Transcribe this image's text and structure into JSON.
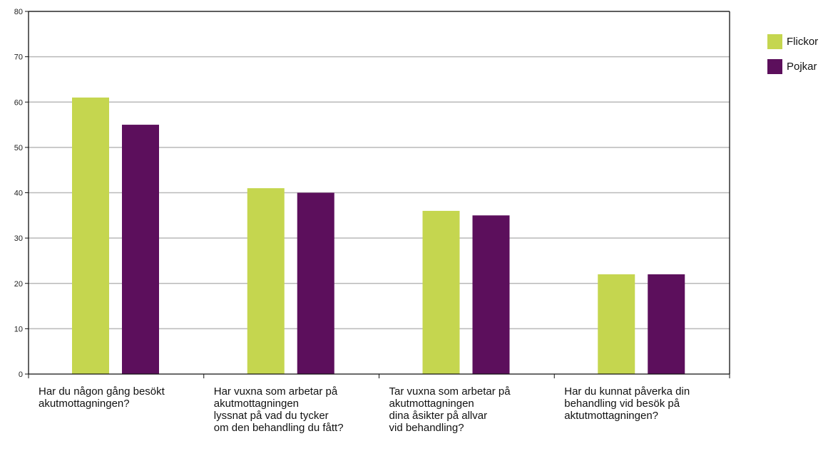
{
  "chart_data": {
    "type": "bar",
    "title": "",
    "xlabel": "",
    "ylabel": "",
    "ylim": [
      0,
      80
    ],
    "yticks": [
      0,
      10,
      20,
      30,
      40,
      50,
      60,
      70,
      80
    ],
    "grid": true,
    "legend_position": "top-right",
    "categories": [
      [
        "Har du någon gång besökt",
        "akutmottagningen?"
      ],
      [
        "Har vuxna som arbetar på",
        "akutmottagningen",
        "lyssnat på vad du tycker",
        "om den behandling du fått?"
      ],
      [
        "Tar vuxna som arbetar på",
        "akutmottagningen",
        "dina åsikter på allvar",
        "vid behandling?"
      ],
      [
        "Har du kunnat påverka din",
        "behandling vid besök på",
        "aktutmottagningen?"
      ]
    ],
    "series": [
      {
        "name": "Flickor",
        "color": "#c5d64f",
        "values": [
          61,
          41,
          36,
          22
        ]
      },
      {
        "name": "Pojkar",
        "color": "#5c0f5c",
        "values": [
          55,
          40,
          35,
          22
        ]
      }
    ]
  }
}
